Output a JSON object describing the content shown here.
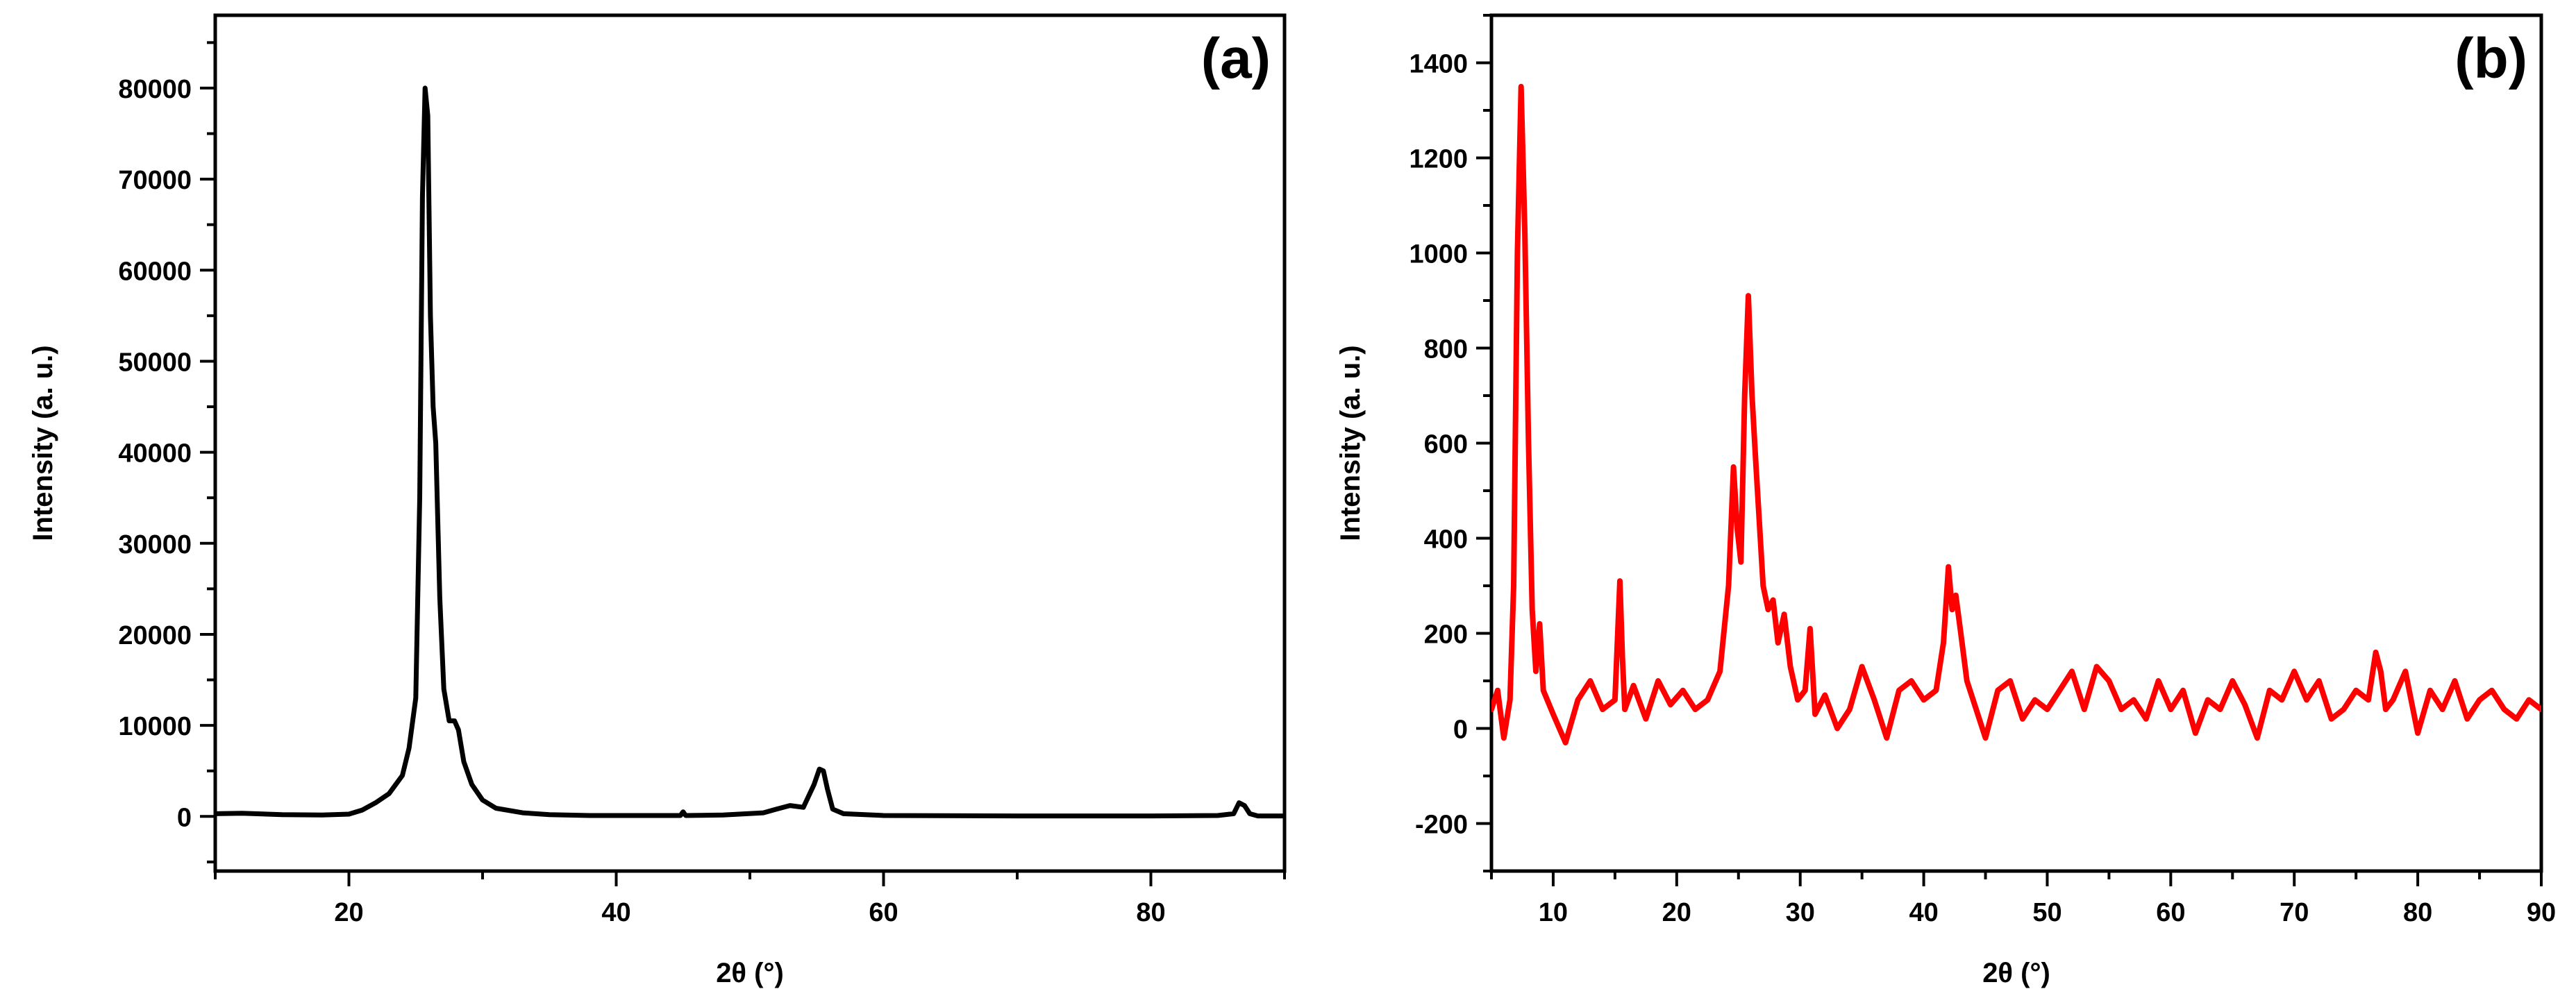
{
  "chart_data": [
    {
      "type": "line",
      "panel_label": "(a)",
      "xlabel": "2θ (°)",
      "ylabel": "Intensity (a. u.)",
      "xlim": [
        10,
        90
      ],
      "ylim": [
        -6000,
        88000
      ],
      "x_ticks": [
        20,
        40,
        60,
        80
      ],
      "x_tick_labels": [
        "20",
        "40",
        "60",
        "80"
      ],
      "y_ticks": [
        0,
        10000,
        20000,
        30000,
        40000,
        50000,
        60000,
        70000,
        80000
      ],
      "y_tick_labels": [
        "0",
        "10000",
        "20000",
        "30000",
        "40000",
        "50000",
        "60000",
        "70000",
        "80000"
      ],
      "grid": false,
      "series": [
        {
          "color": "#000000",
          "x": [
            10,
            12,
            15,
            18,
            20,
            21,
            22,
            23,
            24,
            24.5,
            25,
            25.3,
            25.5,
            25.7,
            25.9,
            26.1,
            26.3,
            26.5,
            26.8,
            27.1,
            27.5,
            27.9,
            28.2,
            28.6,
            29.2,
            30,
            31,
            33,
            35,
            38,
            40,
            44.8,
            45,
            45.2,
            48,
            51,
            52,
            53,
            54,
            54.8,
            55.2,
            55.5,
            55.8,
            56.2,
            57,
            60,
            70,
            80,
            85,
            86.2,
            86.6,
            87,
            87.4,
            88,
            90
          ],
          "y": [
            300,
            350,
            200,
            150,
            250,
            700,
            1500,
            2500,
            4500,
            7500,
            13000,
            35000,
            68000,
            80000,
            77000,
            55000,
            45000,
            41000,
            24000,
            14000,
            10500,
            10500,
            9500,
            6000,
            3500,
            1800,
            900,
            400,
            200,
            100,
            100,
            100,
            500,
            100,
            150,
            400,
            800,
            1200,
            1000,
            3500,
            5200,
            5000,
            3000,
            800,
            300,
            100,
            50,
            50,
            100,
            300,
            1500,
            1200,
            300,
            50,
            50
          ]
        }
      ]
    },
    {
      "type": "line",
      "panel_label": "(b)",
      "xlabel": "2θ (°)",
      "ylabel": "Intensity (a. u.)",
      "xlim": [
        5,
        90
      ],
      "ylim": [
        -300,
        1500
      ],
      "x_ticks": [
        10,
        20,
        30,
        40,
        50,
        60,
        70,
        80,
        90
      ],
      "x_tick_labels": [
        "10",
        "20",
        "30",
        "40",
        "50",
        "60",
        "70",
        "80",
        "90"
      ],
      "y_ticks": [
        -200,
        0,
        200,
        400,
        600,
        800,
        1000,
        1200,
        1400
      ],
      "y_tick_labels": [
        "-200",
        "0",
        "200",
        "400",
        "600",
        "800",
        "1000",
        "1200",
        "1400"
      ],
      "grid": false,
      "series": [
        {
          "color": "#ff0000",
          "x": [
            5,
            5.5,
            6,
            6.5,
            6.8,
            7.1,
            7.4,
            7.7,
            8.0,
            8.3,
            8.6,
            8.9,
            9.2,
            10,
            11,
            12,
            13,
            14,
            15,
            15.4,
            15.6,
            15.8,
            16.5,
            17.5,
            18.5,
            19.5,
            20.5,
            21.5,
            22.5,
            23.5,
            24.2,
            24.6,
            24.9,
            25.2,
            25.5,
            25.8,
            26.1,
            26.4,
            26.7,
            27.0,
            27.4,
            27.8,
            28.2,
            28.7,
            29.2,
            29.8,
            30.4,
            30.8,
            31.2,
            32,
            33,
            34,
            35,
            36,
            37,
            38,
            39,
            40,
            41,
            41.6,
            42.0,
            42.3,
            42.6,
            43.0,
            43.5,
            44,
            45,
            46,
            47,
            48,
            49,
            50,
            51,
            52,
            53,
            54,
            55,
            56,
            57,
            58,
            59,
            60,
            61,
            62,
            63,
            64,
            65,
            66,
            67,
            68,
            69,
            70,
            71,
            72,
            73,
            74,
            75,
            76,
            76.6,
            77.0,
            77.4,
            78,
            79,
            80,
            81,
            82,
            83,
            84,
            85,
            86,
            87,
            88,
            89,
            90
          ],
          "y": [
            40,
            80,
            -20,
            60,
            300,
            1000,
            1350,
            1050,
            600,
            250,
            120,
            220,
            80,
            30,
            -30,
            60,
            100,
            40,
            60,
            310,
            150,
            40,
            90,
            20,
            100,
            50,
            80,
            40,
            60,
            120,
            300,
            550,
            420,
            350,
            700,
            910,
            700,
            560,
            430,
            300,
            250,
            270,
            180,
            240,
            130,
            60,
            80,
            210,
            30,
            70,
            0,
            40,
            130,
            60,
            -20,
            80,
            100,
            60,
            80,
            180,
            340,
            250,
            280,
            200,
            100,
            60,
            -20,
            80,
            100,
            20,
            60,
            40,
            80,
            120,
            40,
            130,
            100,
            40,
            60,
            20,
            100,
            40,
            80,
            -10,
            60,
            40,
            100,
            50,
            -20,
            80,
            60,
            120,
            60,
            100,
            20,
            40,
            80,
            60,
            160,
            120,
            40,
            60,
            120,
            -10,
            80,
            40,
            100,
            20,
            60,
            80,
            40,
            20,
            60,
            40
          ]
        }
      ]
    }
  ]
}
